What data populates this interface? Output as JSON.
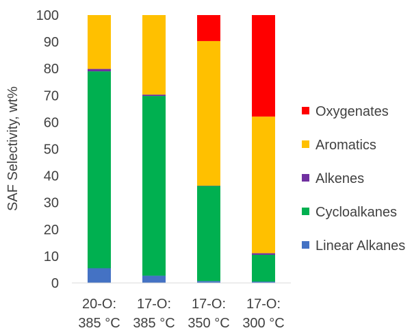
{
  "chart_data": {
    "type": "bar",
    "stacked": true,
    "title": "",
    "xlabel": "",
    "ylabel": "SAF Selectivity, wt%",
    "ylim": [
      0,
      100
    ],
    "y_ticks": [
      0,
      10,
      20,
      30,
      40,
      50,
      60,
      70,
      80,
      90,
      100
    ],
    "grid": false,
    "legend_position": "right",
    "categories": [
      [
        "20-O:",
        "385 °C"
      ],
      [
        "17-O:",
        "385 °C"
      ],
      [
        "17-O:",
        "350 °C"
      ],
      [
        "17-O:",
        "300 °C"
      ]
    ],
    "series": [
      {
        "name": "Linear Alkanes",
        "color": "#4472C4",
        "values": [
          5.5,
          2.7,
          0.7,
          0.5
        ]
      },
      {
        "name": "Cycloalkanes",
        "color": "#00B050",
        "values": [
          73.5,
          67.1,
          35.5,
          10.0
        ]
      },
      {
        "name": "Alkenes",
        "color": "#7030A0",
        "values": [
          0.9,
          0.5,
          0.1,
          0.6
        ]
      },
      {
        "name": "Aromatics",
        "color": "#FFC000",
        "values": [
          20.1,
          29.7,
          54.0,
          51.0
        ]
      },
      {
        "name": "Oxygenates",
        "color": "#FF0000",
        "values": [
          0.0,
          0.0,
          9.7,
          37.9
        ]
      }
    ],
    "legend_order": [
      "Oxygenates",
      "Aromatics",
      "Alkenes",
      "Cycloalkanes",
      "Linear Alkanes"
    ]
  }
}
